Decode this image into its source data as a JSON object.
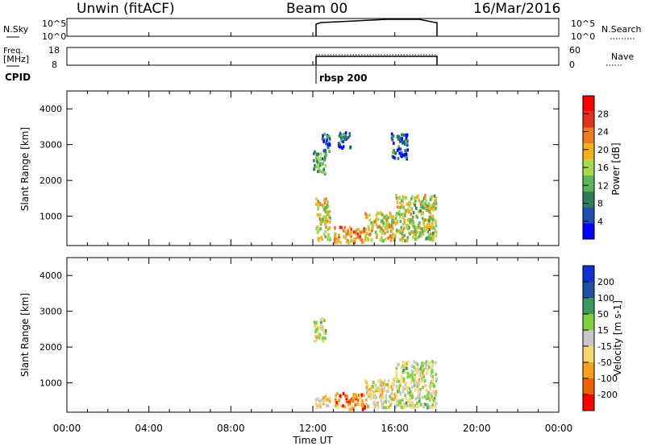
{
  "header": {
    "station": "Unwin (fitACF)",
    "beam": "Beam 00",
    "date": "16/Mar/2016"
  },
  "noise_panel": {
    "left_label": "N.Sky",
    "left_ticks": [
      "10^5",
      "10^0"
    ],
    "right_ticks": [
      "10^5",
      "10^0"
    ],
    "right_label": "N.Search"
  },
  "freq_panel": {
    "left_label_1": "Freq.",
    "left_label_2": "[MHz]",
    "left_ticks": [
      "18",
      "8"
    ],
    "right_ticks": [
      "60",
      "0"
    ],
    "right_label": "Nave"
  },
  "cpid": {
    "label": "CPID",
    "value": "rbsp 200"
  },
  "colors": {
    "power": [
      "#0000ff",
      "#1e50b4",
      "#2e7d5a",
      "#5ab45a",
      "#a8d850",
      "#f0b020",
      "#f07820",
      "#e03020",
      "#ff0000"
    ],
    "velocity": [
      "#ff0000",
      "#f06000",
      "#f8a020",
      "#f8d870",
      "#c8c8c8",
      "#80d040",
      "#3a9a5a",
      "#2050a0",
      "#1030d0"
    ]
  },
  "chart_data": [
    {
      "type": "heatmap",
      "panel": "power",
      "ylabel": "Slant Range [km]",
      "yticks": [
        "1000",
        "2000",
        "3000",
        "4000"
      ],
      "ylim": [
        180,
        4500
      ],
      "xlim": [
        0,
        24
      ],
      "colorbar_label": "Power [dB]",
      "colorbar_ticks": [
        "4",
        "8",
        "12",
        "16",
        "20",
        "24",
        "28"
      ],
      "colorbar_range": [
        0,
        32
      ],
      "data_time_range_ut": [
        12,
        18
      ],
      "echo_regions": [
        {
          "t": [
            12.0,
            12.6
          ],
          "r": [
            2150,
            2800
          ],
          "value": 12
        },
        {
          "t": [
            12.4,
            12.8
          ],
          "r": [
            2700,
            3300
          ],
          "value": 6
        },
        {
          "t": [
            13.2,
            13.8
          ],
          "r": [
            2900,
            3350
          ],
          "value": 6
        },
        {
          "t": [
            15.8,
            16.6
          ],
          "r": [
            2600,
            3300
          ],
          "value": 6
        },
        {
          "t": [
            12.1,
            12.8
          ],
          "r": [
            300,
            1500
          ],
          "value": 18
        },
        {
          "t": [
            13.0,
            14.5
          ],
          "r": [
            250,
            700
          ],
          "value": 22
        },
        {
          "t": [
            14.5,
            16.0
          ],
          "r": [
            300,
            1100
          ],
          "value": 18
        },
        {
          "t": [
            16.0,
            18.0
          ],
          "r": [
            300,
            1600
          ],
          "value": 16
        }
      ]
    },
    {
      "type": "heatmap",
      "panel": "velocity",
      "ylabel": "Slant Range [km]",
      "yticks": [
        "1000",
        "2000",
        "3000",
        "4000"
      ],
      "ylim": [
        180,
        4500
      ],
      "xlim": [
        0,
        24
      ],
      "colorbar_label": "Velocity [m s-1]",
      "colorbar_ticks": [
        "200",
        "100",
        "50",
        "15",
        "-15",
        "-50",
        "-100",
        "-200"
      ],
      "colorbar_range": [
        -250,
        250
      ],
      "data_time_range_ut": [
        12,
        18
      ],
      "echo_regions": [
        {
          "t": [
            12.0,
            12.6
          ],
          "r": [
            2150,
            2800
          ],
          "value": 0
        },
        {
          "t": [
            12.1,
            12.8
          ],
          "r": [
            300,
            700
          ],
          "value": -60
        },
        {
          "t": [
            13.0,
            14.5
          ],
          "r": [
            250,
            700
          ],
          "value": -150
        },
        {
          "t": [
            14.5,
            16.0
          ],
          "r": [
            300,
            1100
          ],
          "value": -30
        },
        {
          "t": [
            16.0,
            18.0
          ],
          "r": [
            300,
            1600
          ],
          "value": 0
        }
      ]
    }
  ],
  "x_axis": {
    "ticks": [
      "00:00",
      "04:00",
      "08:00",
      "12:00",
      "16:00",
      "20:00",
      "00:00"
    ],
    "label": "Time UT"
  }
}
